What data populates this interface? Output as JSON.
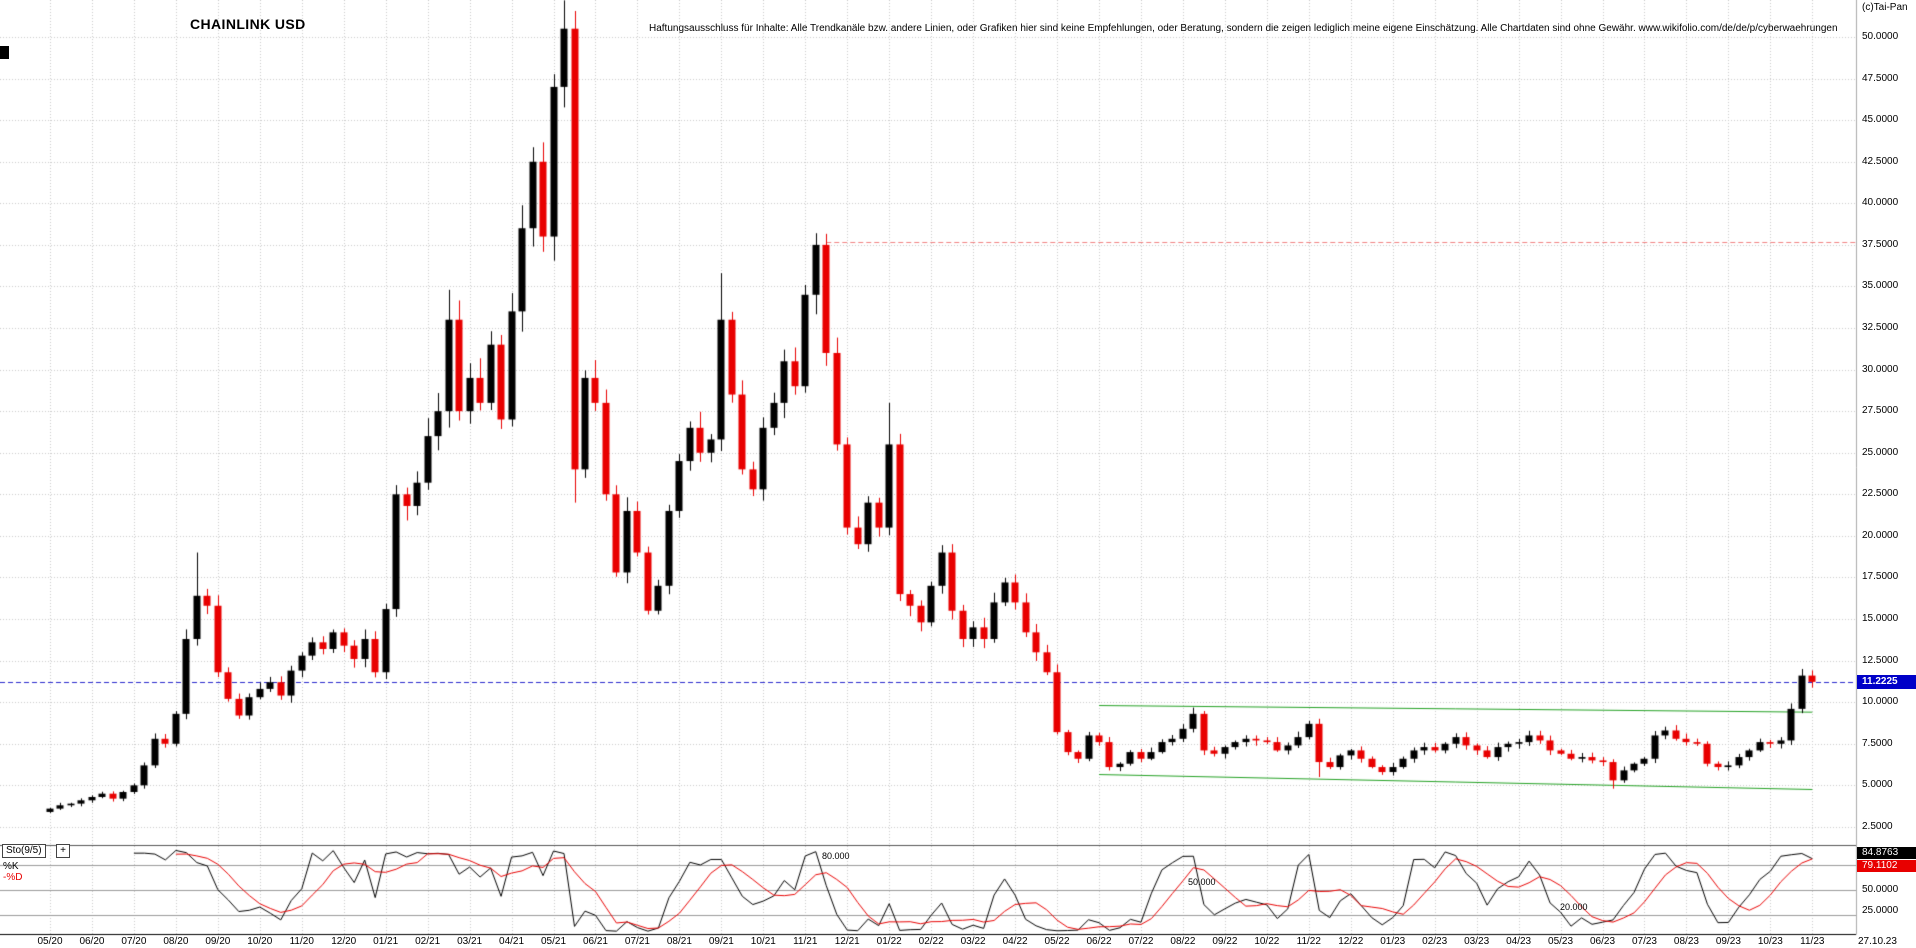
{
  "window": {
    "copyright": "(c)Tai-Pan"
  },
  "header": {
    "title": "CHAINLINK USD",
    "disclaimer": "Haftungsausschluss für Inhalte: Alle Trendkanäle bzw. andere Linien, oder Grafiken hier sind keine Empfehlungen, oder Beratung, sondern die zeigen lediglich meine eigene Einschätzung. Alle Chartdaten sind ohne Gewähr.  www.wikifolio.com/de/de/p/cyberwaehrungen"
  },
  "colors": {
    "up": "#000000",
    "down": "#e80000",
    "grid": "#c9c9c9",
    "k_line": "#000000",
    "d_line": "#e80000",
    "current_badge_bg": "#0000c8",
    "current_line": "#2929cc",
    "resistance": "#f08080",
    "channel": "#22a022"
  },
  "price_axis": {
    "current_price_label": "11.2225",
    "ticks": [
      {
        "label": "50.0000",
        "value": 50
      },
      {
        "label": "47.5000",
        "value": 47.5
      },
      {
        "label": "45.0000",
        "value": 45
      },
      {
        "label": "42.5000",
        "value": 42.5
      },
      {
        "label": "40.0000",
        "value": 40
      },
      {
        "label": "37.5000",
        "value": 37.5
      },
      {
        "label": "35.0000",
        "value": 35
      },
      {
        "label": "32.5000",
        "value": 32.5
      },
      {
        "label": "30.0000",
        "value": 30
      },
      {
        "label": "27.5000",
        "value": 27.5
      },
      {
        "label": "25.0000",
        "value": 25
      },
      {
        "label": "22.5000",
        "value": 22.5
      },
      {
        "label": "20.0000",
        "value": 20
      },
      {
        "label": "17.5000",
        "value": 17.5
      },
      {
        "label": "15.0000",
        "value": 15
      },
      {
        "label": "12.5000",
        "value": 12.5
      },
      {
        "label": "10.0000",
        "value": 10
      },
      {
        "label": "7.5000",
        "value": 7.5
      },
      {
        "label": "5.0000",
        "value": 5
      },
      {
        "label": "2.5000",
        "value": 2.5
      }
    ]
  },
  "time_axis": {
    "end_date_label": "27.10.23"
  },
  "indicator": {
    "name_label": "Sto(9/5)",
    "add_button": "+",
    "k_label": "%K",
    "d_label": "-%D",
    "k_value_label": "84.8763",
    "d_value_label": "79.1102",
    "scale_label_50": "50.0000",
    "scale_label_25": "25.0000",
    "levels": [
      {
        "label": "80.000",
        "value": 80
      },
      {
        "label": "50.000",
        "value": 50
      },
      {
        "label": "20.000",
        "value": 20
      }
    ]
  },
  "chart_data": {
    "type": "candlestick",
    "title": "CHAINLINK USD",
    "interval": "weekly",
    "ylim": [
      1.4,
      52.5
    ],
    "y_ticks": [
      2.5,
      5,
      7.5,
      10,
      12.5,
      15,
      17.5,
      20,
      22.5,
      25,
      27.5,
      30,
      32.5,
      35,
      37.5,
      40,
      42.5,
      45,
      47.5,
      50
    ],
    "x_months": [
      "05/20",
      "06/20",
      "07/20",
      "08/20",
      "09/20",
      "10/20",
      "11/20",
      "12/20",
      "01/21",
      "02/21",
      "03/21",
      "04/21",
      "05/21",
      "06/21",
      "07/21",
      "08/21",
      "09/21",
      "10/21",
      "11/21",
      "12/21",
      "01/22",
      "02/22",
      "03/22",
      "04/22",
      "05/22",
      "06/22",
      "07/22",
      "08/22",
      "09/22",
      "10/22",
      "11/22",
      "12/22",
      "01/23",
      "02/23",
      "03/23",
      "04/23",
      "05/23",
      "06/23",
      "07/23",
      "08/23",
      "09/23",
      "10/23",
      "11/23"
    ],
    "first_open": 3.4,
    "weekly_closes": [
      3.6,
      3.8,
      3.9,
      4.1,
      4.3,
      4.5,
      4.2,
      4.6,
      5.0,
      6.2,
      7.8,
      7.5,
      9.3,
      13.8,
      16.4,
      15.8,
      11.8,
      10.2,
      9.2,
      10.3,
      10.8,
      11.2,
      10.4,
      11.9,
      12.8,
      13.6,
      13.2,
      14.2,
      13.4,
      12.6,
      13.8,
      11.8,
      15.6,
      22.5,
      21.8,
      23.2,
      26.0,
      27.5,
      33.0,
      27.5,
      29.5,
      28.0,
      31.5,
      27.0,
      33.5,
      38.5,
      42.5,
      38.0,
      47.0,
      50.5,
      24.0,
      29.5,
      28.0,
      22.5,
      17.8,
      21.5,
      19.0,
      15.5,
      17.0,
      21.5,
      24.5,
      26.5,
      25.0,
      25.8,
      33.0,
      28.5,
      24.0,
      22.8,
      26.5,
      28.0,
      30.5,
      29.0,
      34.5,
      37.5,
      31.0,
      25.5,
      20.5,
      19.5,
      22.0,
      20.5,
      25.5,
      16.5,
      15.8,
      14.8,
      17.0,
      19.0,
      15.5,
      13.8,
      14.5,
      13.8,
      16.0,
      17.2,
      16.0,
      14.2,
      13.0,
      11.8,
      8.2,
      7.0,
      6.6,
      8.0,
      7.6,
      6.1,
      6.3,
      7.0,
      6.6,
      7.0,
      7.6,
      7.8,
      8.4,
      9.3,
      7.1,
      6.9,
      7.3,
      7.6,
      7.8,
      7.7,
      7.6,
      7.1,
      7.4,
      7.9,
      8.7,
      6.4,
      6.1,
      6.8,
      7.1,
      6.6,
      6.1,
      5.8,
      6.1,
      6.6,
      7.1,
      7.3,
      7.1,
      7.5,
      7.9,
      7.4,
      7.1,
      6.7,
      7.3,
      7.5,
      7.6,
      8.0,
      7.7,
      7.1,
      6.9,
      6.6,
      6.7,
      6.5,
      6.4,
      5.3,
      5.9,
      6.3,
      6.6,
      8.0,
      8.3,
      7.8,
      7.6,
      7.5,
      6.3,
      6.1,
      6.2,
      6.7,
      7.1,
      7.6,
      7.5,
      7.7,
      9.6,
      11.6,
      11.2225
    ],
    "high_overrides": {
      "14": 19.0,
      "38": 34.8,
      "49": 52.2,
      "64": 35.8,
      "73": 38.2,
      "80": 28.0
    },
    "low_overrides": {
      "50": 22.0,
      "121": 5.5,
      "149": 4.8
    },
    "current_price": 11.2225,
    "current_price_line": {
      "price": 11.2225,
      "style": "dashed",
      "color": "#2929cc"
    },
    "resistance_line": {
      "price": 37.7,
      "style": "dashed",
      "color": "#f08080",
      "start_month": "11/21"
    },
    "channel": {
      "start_month": "06/22",
      "end_month": "11/23",
      "upper": [
        9.8,
        9.4
      ],
      "lower": [
        5.65,
        4.75
      ],
      "color": "#22a022"
    },
    "indicator_panel": {
      "type": "stochastic",
      "label": "Sto(9/5)",
      "period": 9,
      "smooth": 5,
      "k_last": 84.8763,
      "d_last": 79.1102,
      "levels": [
        80,
        50,
        20
      ],
      "range": [
        0,
        100
      ]
    }
  }
}
